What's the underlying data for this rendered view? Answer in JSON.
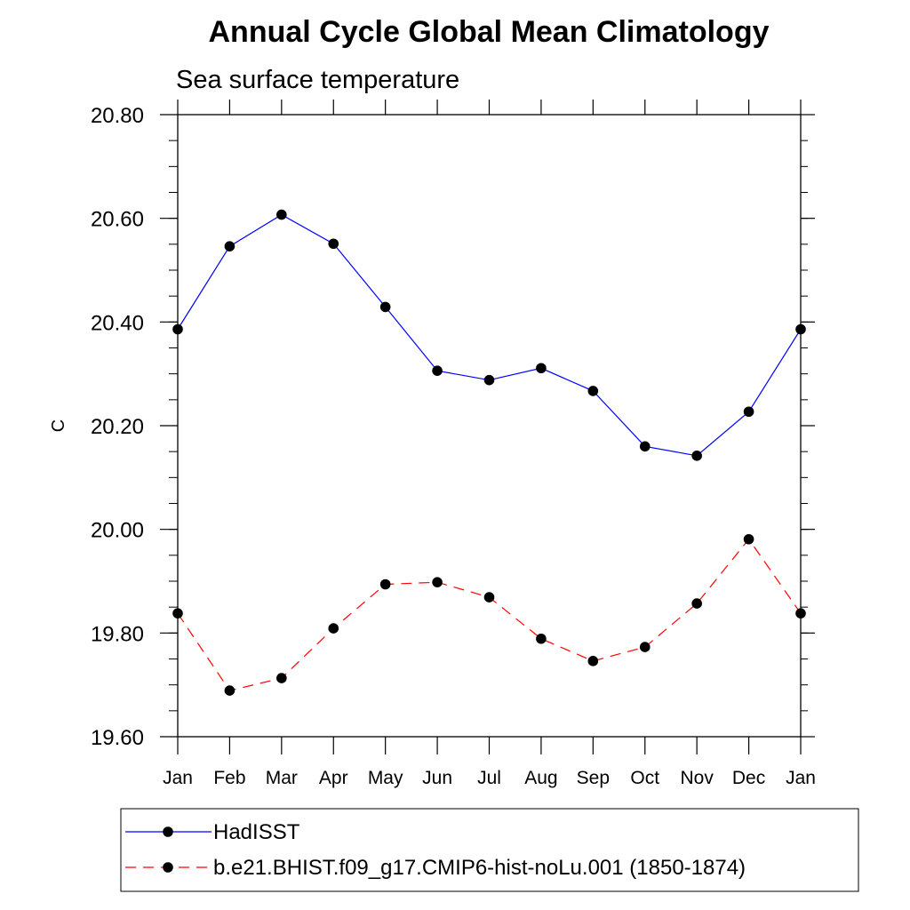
{
  "chart_data": {
    "type": "line",
    "title": "Annual Cycle Global Mean Climatology",
    "subtitle": "Sea surface temperature",
    "xlabel": "",
    "ylabel": "C",
    "categories": [
      "Jan",
      "Feb",
      "Mar",
      "Apr",
      "May",
      "Jun",
      "Jul",
      "Aug",
      "Sep",
      "Oct",
      "Nov",
      "Dec",
      "Jan"
    ],
    "ylim": [
      19.6,
      20.8
    ],
    "yticks": [
      19.6,
      19.8,
      20.0,
      20.2,
      20.4,
      20.6,
      20.8
    ],
    "ytick_labels": [
      "19.60",
      "19.80",
      "20.00",
      "20.20",
      "20.40",
      "20.60",
      "20.80"
    ],
    "legend_position": "bottom",
    "series": [
      {
        "name": "HadISST",
        "color": "#0000ff",
        "dash": "solid",
        "marker": "filled-circle",
        "values": [
          20.386,
          20.546,
          20.607,
          20.551,
          20.429,
          20.306,
          20.288,
          20.311,
          20.267,
          20.16,
          20.142,
          20.227,
          20.386
        ]
      },
      {
        "name": "b.e21.BHIST.f09_g17.CMIP6-hist-noLu.001 (1850-1874)",
        "color": "#ff0000",
        "dash": "dashed",
        "marker": "filled-circle",
        "values": [
          19.838,
          19.689,
          19.713,
          19.809,
          19.894,
          19.898,
          19.869,
          19.789,
          19.746,
          19.773,
          19.857,
          19.981,
          19.838
        ]
      }
    ]
  }
}
